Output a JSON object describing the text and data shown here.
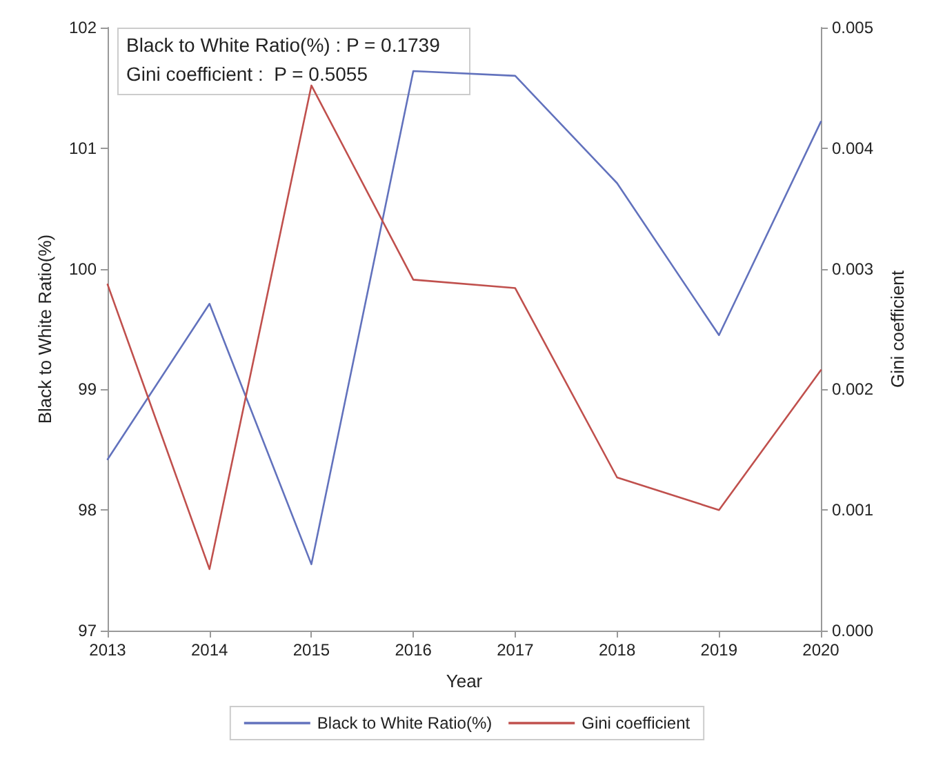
{
  "chart_data": {
    "type": "line",
    "xlabel": "Year",
    "ylabel": "Black to White Ratio(%)",
    "y2label": "Gini coefficient",
    "categories": [
      "2013",
      "2014",
      "2015",
      "2016",
      "2017",
      "2018",
      "2019",
      "2020"
    ],
    "series": [
      {
        "name": "Black to White Ratio(%)",
        "color": "#6272bd",
        "values": [
          98.42,
          99.71,
          97.55,
          101.64,
          101.6,
          100.71,
          99.45,
          101.22
        ]
      },
      {
        "name": "Gini coefficient",
        "color": "#c0504d",
        "axis": "y2",
        "values": [
          0.00287,
          0.00051,
          0.00452,
          0.00291,
          0.00284,
          0.00127,
          0.001,
          0.00216
        ]
      }
    ],
    "ylim": [
      97,
      102
    ],
    "yticks": [
      97,
      98,
      99,
      100,
      101,
      102
    ],
    "y2lim": [
      0,
      0.005
    ],
    "y2ticks": [
      {
        "value": 0,
        "label": "0.000"
      },
      0.001,
      0.002,
      0.003,
      0.004,
      0.005
    ],
    "annotations": [
      "Black to White Ratio(%) : P = 0.1739",
      "Gini coefficient :  P = 0.5055"
    ],
    "legend": "bottom",
    "grid": false,
    "marker": "none",
    "line_style": "solid"
  }
}
